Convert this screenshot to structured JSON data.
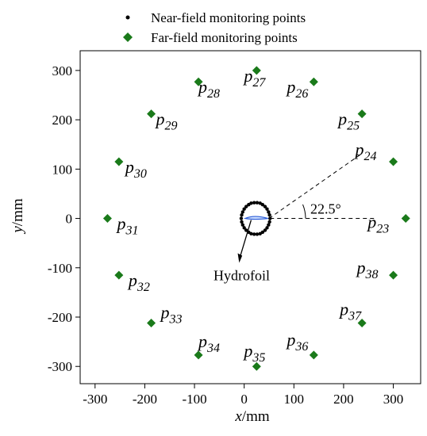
{
  "chart_data": {
    "type": "scatter",
    "xlabel": {
      "var": "x",
      "unit": "/mm"
    },
    "ylabel": {
      "var": "y",
      "unit": "/mm"
    },
    "xlim": [
      -330,
      355
    ],
    "ylim": [
      -335,
      340
    ],
    "xticks": [
      -300,
      -200,
      -100,
      0,
      100,
      200,
      300
    ],
    "yticks": [
      -300,
      -200,
      -100,
      0,
      100,
      200,
      300
    ],
    "grid": false,
    "legend_position": "top",
    "series": [
      {
        "name": "Near-field monitoring points",
        "marker": "circle",
        "color": "#000000",
        "points": [
          {
            "x": 52,
            "y": 0
          },
          {
            "x": 51,
            "y": 7
          },
          {
            "x": 49,
            "y": 13
          },
          {
            "x": 46,
            "y": 19
          },
          {
            "x": 42,
            "y": 24
          },
          {
            "x": 37,
            "y": 28
          },
          {
            "x": 32,
            "y": 31
          },
          {
            "x": 26,
            "y": 32
          },
          {
            "x": 20,
            "y": 32
          },
          {
            "x": 14,
            "y": 31
          },
          {
            "x": 9,
            "y": 28
          },
          {
            "x": 4,
            "y": 24
          },
          {
            "x": 0,
            "y": 19
          },
          {
            "x": -3,
            "y": 13
          },
          {
            "x": -5,
            "y": 7
          },
          {
            "x": -6,
            "y": 0
          },
          {
            "x": -5,
            "y": -7
          },
          {
            "x": -3,
            "y": -13
          },
          {
            "x": 0,
            "y": -19
          },
          {
            "x": 4,
            "y": -24
          },
          {
            "x": 9,
            "y": -28
          },
          {
            "x": 14,
            "y": -31
          },
          {
            "x": 20,
            "y": -32
          },
          {
            "x": 26,
            "y": -32
          },
          {
            "x": 32,
            "y": -31
          },
          {
            "x": 37,
            "y": -28
          },
          {
            "x": 42,
            "y": -24
          },
          {
            "x": 46,
            "y": -19
          },
          {
            "x": 49,
            "y": -13
          },
          {
            "x": 51,
            "y": -7
          }
        ]
      },
      {
        "name": "Far-field monitoring points",
        "marker": "diamond",
        "color": "#1a7a1a",
        "points": [
          {
            "label": "23",
            "x": 325,
            "y": 0
          },
          {
            "label": "24",
            "x": 300,
            "y": 115
          },
          {
            "label": "25",
            "x": 237,
            "y": 212
          },
          {
            "label": "26",
            "x": 140,
            "y": 277
          },
          {
            "label": "27",
            "x": 25,
            "y": 300
          },
          {
            "label": "28",
            "x": -92,
            "y": 277
          },
          {
            "label": "29",
            "x": -187,
            "y": 212
          },
          {
            "label": "30",
            "x": -252,
            "y": 115
          },
          {
            "label": "31",
            "x": -275,
            "y": 0
          },
          {
            "label": "32",
            "x": -252,
            "y": -115
          },
          {
            "label": "33",
            "x": -187,
            "y": -212
          },
          {
            "label": "34",
            "x": -92,
            "y": -277
          },
          {
            "label": "35",
            "x": 25,
            "y": -300
          },
          {
            "label": "36",
            "x": 140,
            "y": -277
          },
          {
            "label": "37",
            "x": 237,
            "y": -212
          },
          {
            "label": "38",
            "x": 300,
            "y": -115
          }
        ]
      }
    ],
    "point_prefix": "p",
    "annotations": {
      "angle_text": "22.5°",
      "hydrofoil_text": "Hydrofoil"
    }
  }
}
